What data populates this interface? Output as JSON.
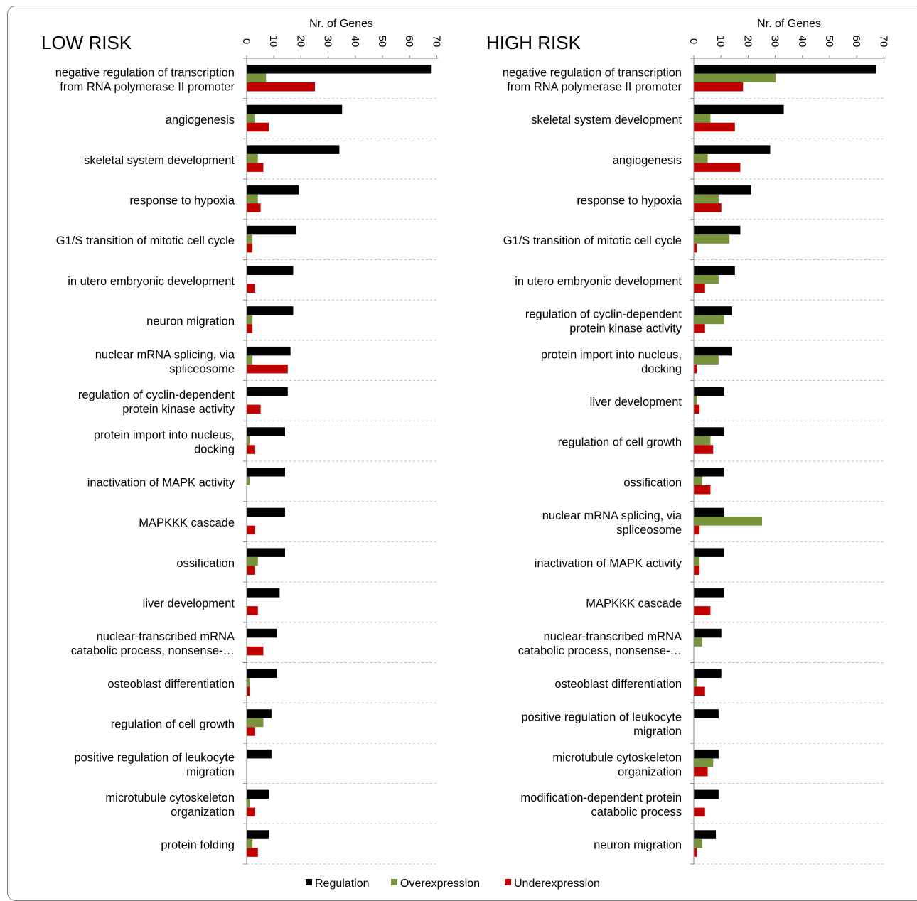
{
  "chart_data": [
    {
      "type": "bar",
      "orientation": "horizontal",
      "title": "LOW RISK",
      "xlabel": "Nr. of Genes",
      "xlim": [
        0,
        70
      ],
      "xticks": [
        "0",
        "10",
        "20",
        "30",
        "40",
        "50",
        "60",
        "70"
      ],
      "grid": "horizontal dashed separators",
      "categories": [
        [
          "negative regulation of transcription",
          "from RNA polymerase II promoter"
        ],
        [
          "angiogenesis"
        ],
        [
          "skeletal system development"
        ],
        [
          "response to hypoxia"
        ],
        [
          "G1/S transition of mitotic cell cycle"
        ],
        [
          "in utero embryonic development"
        ],
        [
          "neuron migration"
        ],
        [
          "nuclear mRNA splicing, via",
          "spliceosome"
        ],
        [
          "regulation of cyclin-dependent",
          "protein kinase activity"
        ],
        [
          "protein import into nucleus,",
          "docking"
        ],
        [
          "inactivation of MAPK activity"
        ],
        [
          "MAPKKK cascade"
        ],
        [
          "ossification"
        ],
        [
          "liver development"
        ],
        [
          "nuclear-transcribed mRNA",
          "catabolic process, nonsense-…"
        ],
        [
          "osteoblast differentiation"
        ],
        [
          "regulation of cell growth"
        ],
        [
          "positive regulation of leukocyte",
          "migration"
        ],
        [
          "microtubule cytoskeleton",
          "organization"
        ],
        [
          "protein folding"
        ]
      ],
      "series": [
        {
          "name": "Regulation",
          "values": [
            68,
            35,
            34,
            19,
            18,
            17,
            17,
            16,
            15,
            14,
            14,
            14,
            14,
            12,
            11,
            11,
            9,
            9,
            8,
            8
          ]
        },
        {
          "name": "Overexpression",
          "values": [
            7,
            3,
            4,
            4,
            2,
            0,
            2,
            2,
            0,
            1,
            1,
            0,
            4,
            0,
            0,
            1,
            6,
            0,
            1,
            2
          ]
        },
        {
          "name": "Underexpression",
          "values": [
            25,
            8,
            6,
            5,
            2,
            3,
            2,
            15,
            5,
            3,
            0,
            3,
            3,
            4,
            6,
            1,
            3,
            0,
            3,
            4
          ]
        }
      ]
    },
    {
      "type": "bar",
      "orientation": "horizontal",
      "title": "HIGH RISK",
      "xlabel": "Nr. of Genes",
      "xlim": [
        0,
        70
      ],
      "xticks": [
        "0",
        "10",
        "20",
        "30",
        "40",
        "50",
        "60",
        "70"
      ],
      "grid": "horizontal dashed separators",
      "categories": [
        [
          "negative regulation of transcription",
          "from RNA polymerase II promoter"
        ],
        [
          "skeletal system development"
        ],
        [
          "angiogenesis"
        ],
        [
          "response to hypoxia"
        ],
        [
          "G1/S transition of mitotic cell cycle"
        ],
        [
          "in utero embryonic development"
        ],
        [
          "regulation of cyclin-dependent",
          "protein kinase activity"
        ],
        [
          "protein import into nucleus,",
          "docking"
        ],
        [
          "liver development"
        ],
        [
          "regulation of cell growth"
        ],
        [
          "ossification"
        ],
        [
          "nuclear mRNA splicing, via",
          "spliceosome"
        ],
        [
          "inactivation of MAPK activity"
        ],
        [
          "MAPKKK cascade"
        ],
        [
          "nuclear-transcribed mRNA",
          "catabolic process, nonsense-…"
        ],
        [
          "osteoblast differentiation"
        ],
        [
          "positive regulation of leukocyte",
          "migration"
        ],
        [
          "microtubule cytoskeleton",
          "organization"
        ],
        [
          "modification-dependent protein",
          "catabolic process"
        ],
        [
          "neuron migration"
        ]
      ],
      "series": [
        {
          "name": "Regulation",
          "values": [
            67,
            33,
            28,
            21,
            17,
            15,
            14,
            14,
            11,
            11,
            11,
            11,
            11,
            11,
            10,
            10,
            9,
            9,
            9,
            8
          ]
        },
        {
          "name": "Overexpression",
          "values": [
            30,
            6,
            5,
            9,
            13,
            9,
            11,
            9,
            1,
            6,
            3,
            25,
            2,
            0,
            3,
            1,
            0,
            7,
            0,
            3
          ]
        },
        {
          "name": "Underexpression",
          "values": [
            18,
            15,
            17,
            10,
            1,
            4,
            4,
            1,
            2,
            7,
            6,
            2,
            2,
            6,
            0,
            4,
            0,
            5,
            4,
            1
          ]
        }
      ]
    }
  ],
  "legend": {
    "placement": "bottom-center",
    "items": [
      {
        "label": "Regulation",
        "color": "#000000"
      },
      {
        "label": "Overexpression",
        "color": "#77933c"
      },
      {
        "label": "Underexpression",
        "color": "#c00000"
      }
    ]
  },
  "colors": {
    "regulation": "#000000",
    "overexpression": "#77933c",
    "underexpression": "#c00000",
    "gridline": "#bfbfbf",
    "axis": "#7f7f7f"
  }
}
